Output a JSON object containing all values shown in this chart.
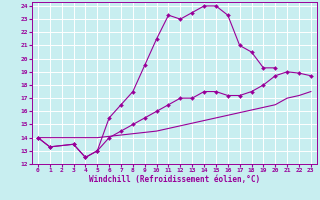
{
  "xlabel": "Windchill (Refroidissement éolien,°C)",
  "bg_color": "#c8eef0",
  "grid_color": "#ffffff",
  "line_color": "#990099",
  "xlim": [
    -0.5,
    23.5
  ],
  "ylim": [
    12,
    24.3
  ],
  "xticks": [
    0,
    1,
    2,
    3,
    4,
    5,
    6,
    7,
    8,
    9,
    10,
    11,
    12,
    13,
    14,
    15,
    16,
    17,
    18,
    19,
    20,
    21,
    22,
    23
  ],
  "yticks": [
    12,
    13,
    14,
    15,
    16,
    17,
    18,
    19,
    20,
    21,
    22,
    23,
    24
  ],
  "line1_x": [
    0,
    1,
    3,
    4,
    5,
    6,
    7,
    8,
    9,
    10,
    11,
    12,
    13,
    14,
    15,
    16,
    17,
    18,
    19,
    20
  ],
  "line1_y": [
    14.0,
    13.3,
    13.5,
    12.5,
    13.0,
    15.5,
    16.5,
    17.5,
    19.5,
    21.5,
    23.3,
    23.0,
    23.5,
    24.0,
    24.0,
    23.3,
    21.0,
    20.5,
    19.3,
    19.3
  ],
  "line2_x": [
    0,
    1,
    3,
    4,
    5,
    6,
    7,
    8,
    9,
    10,
    11,
    12,
    13,
    14,
    15,
    16,
    17,
    18,
    19,
    20,
    21,
    22,
    23
  ],
  "line2_y": [
    14.0,
    13.3,
    13.5,
    12.5,
    13.0,
    14.0,
    14.5,
    15.0,
    15.5,
    16.0,
    16.5,
    17.0,
    17.0,
    17.5,
    17.5,
    17.2,
    17.2,
    17.5,
    18.0,
    18.7,
    19.0,
    18.9,
    18.7
  ],
  "line3_x": [
    0,
    5,
    10,
    15,
    20,
    21,
    22,
    23
  ],
  "line3_y": [
    14.0,
    14.0,
    14.5,
    15.5,
    16.5,
    17.0,
    17.2,
    17.5
  ]
}
